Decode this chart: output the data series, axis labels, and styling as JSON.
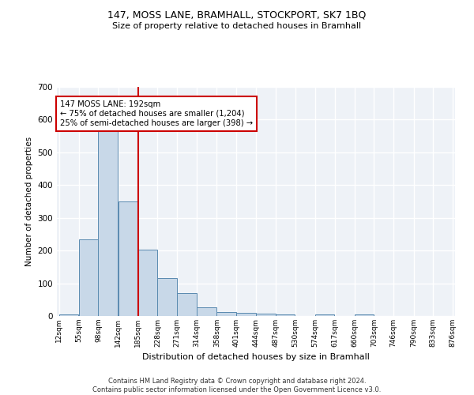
{
  "title1": "147, MOSS LANE, BRAMHALL, STOCKPORT, SK7 1BQ",
  "title2": "Size of property relative to detached houses in Bramhall",
  "xlabel": "Distribution of detached houses by size in Bramhall",
  "ylabel": "Number of detached properties",
  "footer1": "Contains HM Land Registry data © Crown copyright and database right 2024.",
  "footer2": "Contains public sector information licensed under the Open Government Licence v3.0.",
  "annotation_line1": "147 MOSS LANE: 192sqm",
  "annotation_line2": "← 75% of detached houses are smaller (1,204)",
  "annotation_line3": "25% of semi-detached houses are larger (398) →",
  "red_line_bin": 4,
  "bar_color": "#c8d8e8",
  "bar_edge_color": "#5a8ab0",
  "red_line_color": "#cc0000",
  "background_color": "#eef2f7",
  "grid_color": "#ffffff",
  "bins": [
    12,
    55,
    98,
    142,
    185,
    228,
    271,
    314,
    358,
    401,
    444,
    487,
    530,
    574,
    617,
    660,
    703,
    746,
    790,
    833,
    876
  ],
  "bin_labels": [
    "12sqm",
    "55sqm",
    "98sqm",
    "142sqm",
    "185sqm",
    "228sqm",
    "271sqm",
    "314sqm",
    "358sqm",
    "401sqm",
    "444sqm",
    "487sqm",
    "530sqm",
    "574sqm",
    "617sqm",
    "660sqm",
    "703sqm",
    "746sqm",
    "790sqm",
    "833sqm",
    "876sqm"
  ],
  "counts": [
    5,
    235,
    578,
    350,
    202,
    115,
    70,
    27,
    13,
    10,
    7,
    5,
    0,
    4,
    0,
    5,
    0,
    0,
    0,
    0
  ],
  "ylim": [
    0,
    700
  ],
  "yticks": [
    0,
    100,
    200,
    300,
    400,
    500,
    600,
    700
  ],
  "fig_width": 6.0,
  "fig_height": 5.0,
  "dpi": 100
}
